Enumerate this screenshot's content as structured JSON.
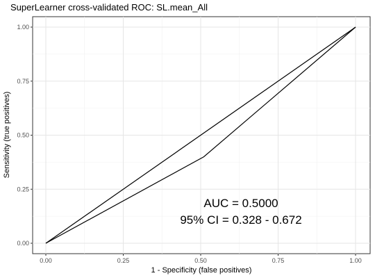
{
  "chart_data": {
    "type": "line",
    "title": "SuperLearner cross-validated ROC: SL.mean_All",
    "xlabel": "1 - Specificity (false positives)",
    "ylabel": "Sensitivity (true positives)",
    "xlim": [
      0,
      1
    ],
    "ylim": [
      0,
      1
    ],
    "xticks": [
      "0.00",
      "0.25",
      "0.50",
      "0.75",
      "1.00"
    ],
    "yticks": [
      "0.00",
      "0.25",
      "0.50",
      "0.75",
      "1.00"
    ],
    "tick_values": [
      0,
      0.25,
      0.5,
      0.75,
      1
    ],
    "grid": true,
    "series": [
      {
        "x": [
          0,
          1
        ],
        "y": [
          0,
          1
        ]
      },
      {
        "x": [
          0,
          0.51,
          1
        ],
        "y": [
          0,
          0.4,
          1
        ]
      }
    ],
    "annotation": {
      "line1": "AUC = 0.5000",
      "line2": "95% CI = 0.328 - 0.672"
    }
  }
}
